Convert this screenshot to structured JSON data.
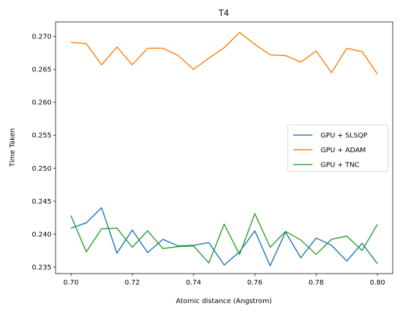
{
  "chart_data": {
    "type": "line",
    "title": "T4",
    "xlabel": "Atomic distance (Angstrom)",
    "ylabel": "Time Taken",
    "xlim": [
      0.695,
      0.805
    ],
    "ylim": [
      0.234,
      0.2722
    ],
    "xticks": [
      "0.70",
      "0.72",
      "0.74",
      "0.76",
      "0.78",
      "0.80"
    ],
    "yticks": [
      "0.235",
      "0.240",
      "0.245",
      "0.250",
      "0.255",
      "0.260",
      "0.265",
      "0.270"
    ],
    "grid": false,
    "legend_position": "center-right",
    "x": [
      0.7,
      0.705,
      0.71,
      0.715,
      0.72,
      0.725,
      0.73,
      0.735,
      0.74,
      0.745,
      0.75,
      0.755,
      0.76,
      0.765,
      0.77,
      0.775,
      0.78,
      0.785,
      0.79,
      0.795,
      0.8
    ],
    "series": [
      {
        "name": "GPU + SLSQP",
        "color": "#1f77b4",
        "values": [
          0.2409,
          0.2417,
          0.244,
          0.2371,
          0.2406,
          0.2372,
          0.2392,
          0.2382,
          0.2383,
          0.2387,
          0.2353,
          0.2373,
          0.2405,
          0.2352,
          0.2403,
          0.2364,
          0.2394,
          0.2383,
          0.2359,
          0.2386,
          0.2355
        ]
      },
      {
        "name": "GPU + ADAM",
        "color": "#ff7f0e",
        "values": [
          0.2691,
          0.2689,
          0.2657,
          0.2684,
          0.2657,
          0.2682,
          0.2682,
          0.2671,
          0.265,
          0.2667,
          0.2683,
          0.2706,
          0.2688,
          0.2672,
          0.2671,
          0.2661,
          0.2678,
          0.2645,
          0.2682,
          0.2677,
          0.2643
        ]
      },
      {
        "name": "GPU + TNC",
        "color": "#2ca02c",
        "values": [
          0.2428,
          0.2373,
          0.2408,
          0.2409,
          0.238,
          0.2405,
          0.2378,
          0.2381,
          0.2382,
          0.2356,
          0.2415,
          0.2369,
          0.2431,
          0.238,
          0.2404,
          0.2391,
          0.2369,
          0.2392,
          0.2397,
          0.2375,
          0.2415
        ]
      }
    ]
  }
}
